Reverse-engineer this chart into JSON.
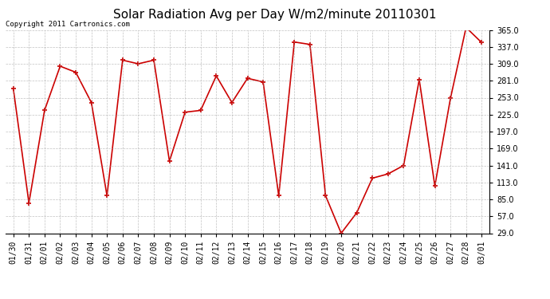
{
  "title": "Solar Radiation Avg per Day W/m2/minute 20110301",
  "copyright_text": "Copyright 2011 Cartronics.com",
  "labels": [
    "01/30",
    "01/31",
    "02/01",
    "02/02",
    "02/03",
    "02/04",
    "02/05",
    "02/06",
    "02/07",
    "02/08",
    "02/09",
    "02/10",
    "02/11",
    "02/12",
    "02/13",
    "02/14",
    "02/15",
    "02/16",
    "02/17",
    "02/18",
    "02/19",
    "02/20",
    "02/21",
    "02/22",
    "02/23",
    "02/24",
    "02/25",
    "02/26",
    "02/27",
    "02/28",
    "03/01"
  ],
  "values": [
    268,
    79,
    232,
    305,
    295,
    245,
    91,
    315,
    309,
    315,
    148,
    229,
    232,
    289,
    245,
    285,
    279,
    91,
    345,
    341,
    91,
    29,
    63,
    120,
    127,
    141,
    283,
    107,
    252,
    369,
    344
  ],
  "line_color": "#cc0000",
  "marker_color": "#cc0000",
  "bg_color": "#ffffff",
  "grid_color": "#999999",
  "ylim_min": 29.0,
  "ylim_max": 365.0,
  "yticks": [
    29.0,
    57.0,
    85.0,
    113.0,
    141.0,
    169.0,
    197.0,
    225.0,
    253.0,
    281.0,
    309.0,
    337.0,
    365.0
  ],
  "title_fontsize": 11,
  "tick_fontsize": 7,
  "copyright_fontsize": 6.5
}
